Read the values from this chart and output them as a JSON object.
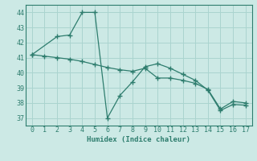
{
  "line1_x": [
    0,
    2,
    3,
    4,
    5,
    6,
    7,
    8,
    9,
    10,
    11,
    12,
    13,
    14,
    15,
    16,
    17
  ],
  "line1_y": [
    41.2,
    42.4,
    42.5,
    44.0,
    44.0,
    37.0,
    38.5,
    39.4,
    40.4,
    40.6,
    40.3,
    39.9,
    39.5,
    38.85,
    37.5,
    37.9,
    37.85
  ],
  "line2_x": [
    0,
    1,
    2,
    3,
    4,
    5,
    6,
    7,
    8,
    9,
    10,
    11,
    12,
    13,
    14,
    15,
    16,
    17
  ],
  "line2_y": [
    41.2,
    41.1,
    41.0,
    40.9,
    40.75,
    40.55,
    40.35,
    40.2,
    40.1,
    40.3,
    39.65,
    39.65,
    39.5,
    39.3,
    38.9,
    37.6,
    38.1,
    38.0
  ],
  "color": "#2e7d6e",
  "bg_color": "#cce9e5",
  "grid_color": "#aad4cf",
  "xlabel": "Humidex (Indice chaleur)",
  "xlim": [
    -0.5,
    17.5
  ],
  "ylim": [
    36.5,
    44.5
  ],
  "yticks": [
    37,
    38,
    39,
    40,
    41,
    42,
    43,
    44
  ],
  "xticks": [
    0,
    1,
    2,
    3,
    4,
    5,
    6,
    7,
    8,
    9,
    10,
    11,
    12,
    13,
    14,
    15,
    16,
    17
  ]
}
